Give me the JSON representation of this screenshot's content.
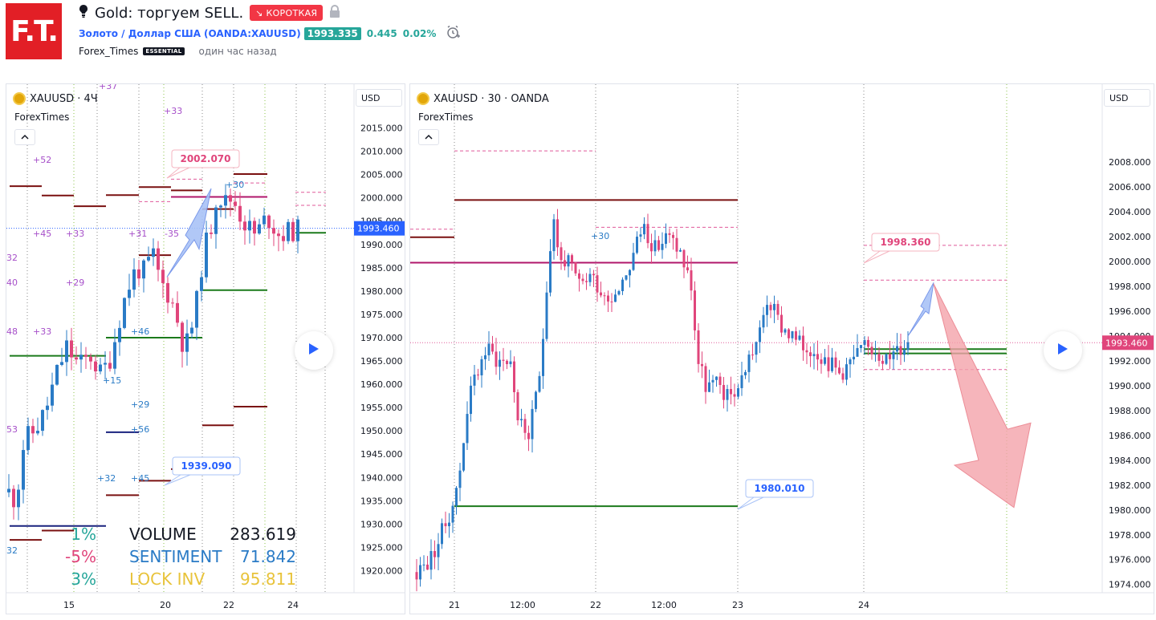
{
  "header": {
    "logo_text": "F.T.",
    "bulb_icon": "lightbulb-icon",
    "title": "Gold: торгуем SELL.",
    "badge": "↘ КОРОТКАЯ",
    "lock_icon": "lock-icon",
    "symbol_name": "Золото / Доллар США",
    "symbol_code": "(OANDA:XAUUSD)",
    "price": "1993.335",
    "change": "0.445",
    "change_pct": "0.02%",
    "alarm_icon": "alarm-clock-icon",
    "author": "Forex_Times",
    "author_badge": "ESSENTIAL",
    "published": "один час назад"
  },
  "colors": {
    "up": "#2a7bc6",
    "down": "#e0457b",
    "brand": "#e21f26",
    "short": "#f23645",
    "green": "#26a69a"
  },
  "left_chart": {
    "legend": "XAUUSD · 4Ч",
    "source": "ForexTimes",
    "collapse_icon": "chevron-up-icon",
    "currency": "USD",
    "y_ticks": [
      "2015.000",
      "2010.000",
      "2005.000",
      "2000.000",
      "1995.000",
      "1990.000",
      "1985.000",
      "1980.000",
      "1975.000",
      "1970.000",
      "1965.000",
      "1960.000",
      "1955.000",
      "1950.000",
      "1945.000",
      "1940.000",
      "1935.000",
      "1930.000",
      "1925.000",
      "1920.000"
    ],
    "y_min": 1917.5,
    "y_max": 2017.5,
    "x_ticks": [
      "15",
      "20",
      "22",
      "24"
    ],
    "last_price": "1993.460",
    "callout_high": "2002.070",
    "callout_low": "1939.090",
    "stats": [
      {
        "label": "VOLUME",
        "value": "283.619",
        "color": "#131722"
      },
      {
        "label": "SENTIMENT",
        "value": "71.842",
        "color": "#2a7bc6"
      },
      {
        "label": "LOCK INV",
        "value": "95.811",
        "color": "#e8c33a"
      }
    ],
    "pcts": [
      {
        "text": "1%",
        "color": "#26a69a"
      },
      {
        "text": "-5%",
        "color": "#e0457b"
      },
      {
        "text": "3%",
        "color": "#26a69a"
      }
    ],
    "markers": [
      "+37",
      "+33",
      "+52",
      "+45",
      "+33",
      "+31",
      "-35",
      "32",
      "40",
      "+29",
      "48",
      "+33",
      "+46",
      "+15",
      "+29",
      "+56",
      "53",
      "+32",
      "+45",
      "+30",
      "32"
    ],
    "play_icon": "play-icon"
  },
  "right_chart": {
    "legend": "XAUUSD · 30 · OANDA",
    "source": "ForexTimes",
    "collapse_icon": "chevron-up-icon",
    "currency": "USD",
    "y_ticks": [
      "2008.000",
      "2006.000",
      "2004.000",
      "2002.000",
      "2000.000",
      "1998.000",
      "1996.000",
      "1994.000",
      "1992.000",
      "1990.000",
      "1988.000",
      "1986.000",
      "1984.000",
      "1982.000",
      "1980.000",
      "1978.000",
      "1976.000",
      "1974.000"
    ],
    "y_min": 1973.4,
    "y_max": 2010.2,
    "x_ticks": [
      "21",
      "12:00",
      "22",
      "12:00",
      "23",
      "24"
    ],
    "last_price": "1993.460",
    "callout_high": "1998.360",
    "callout_low": "1980.010",
    "marker": "+30",
    "play_icon": "play-icon"
  }
}
